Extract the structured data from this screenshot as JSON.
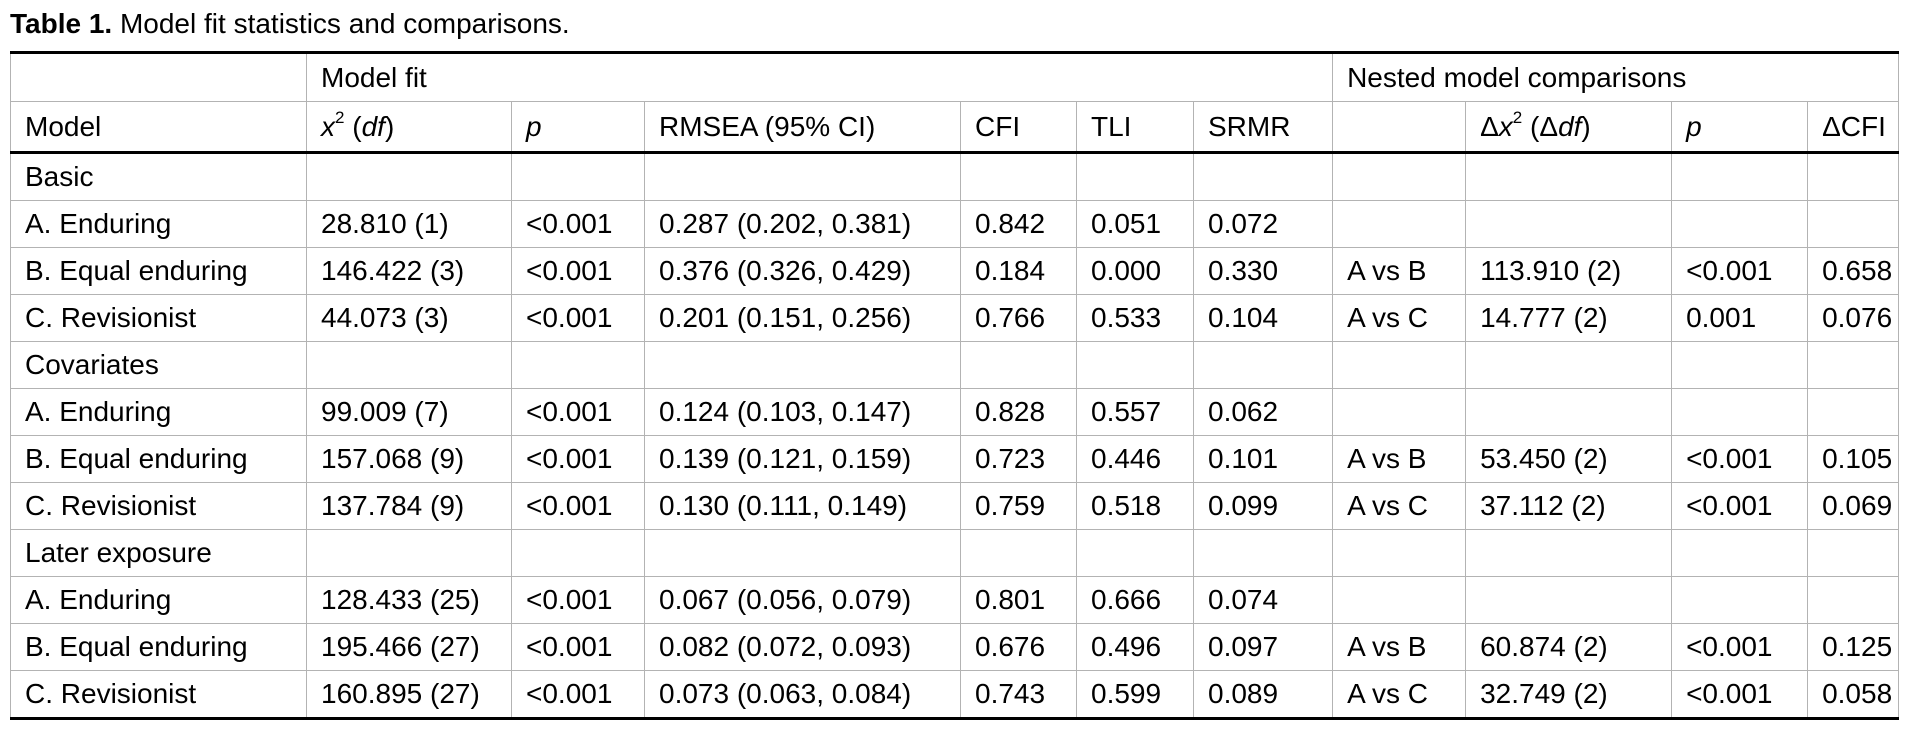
{
  "caption": {
    "label": "Table 1.",
    "text": " Model fit statistics and comparisons."
  },
  "header": {
    "group_model_fit": "Model fit",
    "group_nested": "Nested model comparisons",
    "col_model": "Model",
    "col_chi_symbol": "x",
    "col_chi_sup": "2",
    "col_chi_df": "df",
    "col_p": "p",
    "col_rmsea": "RMSEA (95% CI)",
    "col_cfi": "CFI",
    "col_tli": "TLI",
    "col_srmr": "SRMR",
    "col_cmp": "",
    "col_dchi_delta": "Δ",
    "col_dchi_symbol": "x",
    "col_dchi_sup": "2",
    "col_dchi_df_delta": "Δ",
    "col_dchi_df": "df",
    "col_p2": "p",
    "col_dcfi": "ΔCFI"
  },
  "rows": [
    {
      "kind": "group",
      "label": "Basic"
    },
    {
      "kind": "data",
      "label": "A. Enduring",
      "chi": "28.810 (1)",
      "p": "<0.001",
      "p_bold": true,
      "rmsea": "0.287 (0.202, 0.381)",
      "cfi": "0.842",
      "tli": "0.051",
      "srmr": "0.072",
      "cmp": "",
      "dchi": "",
      "p2": "",
      "p2_bold": false,
      "dcfi": ""
    },
    {
      "kind": "data",
      "label": "B. Equal enduring",
      "chi": "146.422 (3)",
      "p": "<0.001",
      "p_bold": true,
      "rmsea": "0.376 (0.326, 0.429)",
      "cfi": "0.184",
      "tli": "0.000",
      "srmr": "0.330",
      "cmp": "A vs B",
      "dchi": "113.910 (2)",
      "p2": "<0.001",
      "p2_bold": true,
      "dcfi": "0.658"
    },
    {
      "kind": "data",
      "label": "C. Revisionist",
      "chi": "44.073 (3)",
      "p": "<0.001",
      "p_bold": true,
      "rmsea": "0.201 (0.151, 0.256)",
      "cfi": "0.766",
      "tli": "0.533",
      "srmr": "0.104",
      "cmp": "A vs C",
      "dchi": "14.777 (2)",
      "p2": "0.001",
      "p2_bold": true,
      "dcfi": "0.076"
    },
    {
      "kind": "group",
      "label": "Covariates"
    },
    {
      "kind": "data",
      "label": "A. Enduring",
      "chi": "99.009 (7)",
      "p": "<0.001",
      "p_bold": true,
      "rmsea": "0.124 (0.103, 0.147)",
      "cfi": "0.828",
      "tli": "0.557",
      "srmr": "0.062",
      "cmp": "",
      "dchi": "",
      "p2": "",
      "p2_bold": false,
      "dcfi": ""
    },
    {
      "kind": "data",
      "label": "B. Equal enduring",
      "chi": "157.068 (9)",
      "p": "<0.001",
      "p_bold": true,
      "rmsea": "0.139 (0.121, 0.159)",
      "cfi": "0.723",
      "tli": "0.446",
      "srmr": "0.101",
      "cmp": "A vs B",
      "dchi": "53.450 (2)",
      "p2": "<0.001",
      "p2_bold": true,
      "dcfi": "0.105"
    },
    {
      "kind": "data",
      "label": "C. Revisionist",
      "chi": "137.784 (9)",
      "p": "<0.001",
      "p_bold": true,
      "rmsea": "0.130 (0.111, 0.149)",
      "cfi": "0.759",
      "tli": "0.518",
      "srmr": "0.099",
      "cmp": "A vs C",
      "dchi": "37.112 (2)",
      "p2": "<0.001",
      "p2_bold": true,
      "dcfi": "0.069"
    },
    {
      "kind": "group",
      "label": "Later exposure"
    },
    {
      "kind": "data",
      "label": "A. Enduring",
      "chi": "128.433 (25)",
      "p": "<0.001",
      "p_bold": true,
      "rmsea": "0.067 (0.056, 0.079)",
      "cfi": "0.801",
      "tli": "0.666",
      "srmr": "0.074",
      "cmp": "",
      "dchi": "",
      "p2": "",
      "p2_bold": false,
      "dcfi": ""
    },
    {
      "kind": "data",
      "label": "B. Equal enduring",
      "chi": "195.466 (27)",
      "p": "<0.001",
      "p_bold": true,
      "rmsea": "0.082 (0.072, 0.093)",
      "cfi": "0.676",
      "tli": "0.496",
      "srmr": "0.097",
      "cmp": "A vs B",
      "dchi": "60.874 (2)",
      "p2": "<0.001",
      "p2_bold": true,
      "dcfi": "0.125"
    },
    {
      "kind": "data",
      "label": "C. Revisionist",
      "chi": "160.895 (27)",
      "p": "<0.001",
      "p_bold": true,
      "rmsea": "0.073 (0.063, 0.084)",
      "cfi": "0.743",
      "tli": "0.599",
      "srmr": "0.089",
      "cmp": "A vs C",
      "dchi": "32.749 (2)",
      "p2": "<0.001",
      "p2_bold": true,
      "dcfi": "0.058"
    }
  ]
}
